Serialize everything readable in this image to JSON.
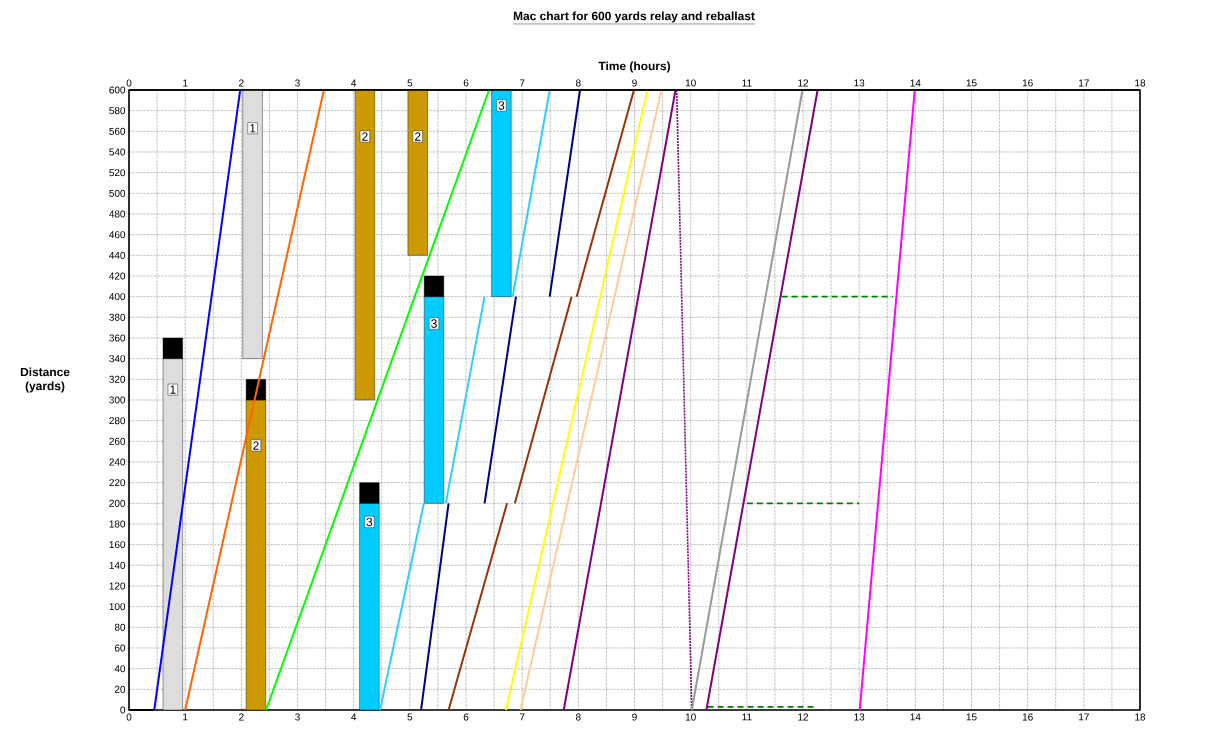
{
  "chart_data": {
    "type": "line",
    "title": "Mac chart for 600 yards relay and reballast",
    "xlabel": "Time (hours)",
    "ylabel": "Distance (yards)",
    "xlim": [
      0,
      18
    ],
    "ylim": [
      0,
      600
    ],
    "x2lim": [
      0,
      18
    ],
    "xticks": [
      0,
      {
        "value": 0.5,
        "label": null
      },
      1,
      {
        "value": 1.5,
        "label": null
      },
      2,
      {
        "value": 2.5,
        "label": null
      },
      3,
      {
        "value": 3.5,
        "label": null
      },
      4,
      {
        "value": 4.5,
        "label": null
      },
      5,
      {
        "value": 5.5,
        "label": null
      },
      6,
      {
        "value": 6.5,
        "label": null
      },
      7,
      {
        "value": 7.5,
        "label": null
      },
      8,
      {
        "value": 8.5,
        "label": null
      },
      9,
      {
        "value": 9.5,
        "label": null
      },
      10,
      {
        "value": 10.5,
        "label": null
      },
      11,
      {
        "value": 11.5,
        "label": null
      },
      12,
      {
        "value": 12.5,
        "label": null
      },
      13,
      {
        "value": 13.5,
        "label": null
      },
      14,
      {
        "value": 14.5,
        "label": null
      },
      15,
      {
        "value": 15.5,
        "label": null
      },
      16,
      {
        "value": 16.5,
        "label": null
      },
      17,
      {
        "value": 17.5,
        "label": null
      },
      18
    ],
    "x2ticks": [
      0,
      1,
      2,
      3,
      4,
      5,
      6,
      7,
      8,
      9,
      10,
      11,
      12,
      13,
      14,
      15,
      16,
      17,
      18
    ],
    "yticks": [
      0,
      20,
      40,
      60,
      80,
      100,
      120,
      140,
      160,
      180,
      200,
      220,
      240,
      260,
      280,
      300,
      320,
      340,
      360,
      380,
      400,
      420,
      440,
      460,
      480,
      500,
      520,
      540,
      560,
      580,
      600
    ],
    "grid": true,
    "line_style": "solid",
    "series": [
      {
        "type": "bar",
        "color": "#dddddd",
        "x": [
          0.78,
          2.2
        ],
        "base": [
          0,
          340
        ],
        "values": [
          340,
          260
        ]
      },
      {
        "type": "bar",
        "color": "#cc9900",
        "x": [
          2.26,
          4.2,
          5.14
        ],
        "base": [
          0,
          300,
          440
        ],
        "values": [
          300,
          300,
          160
        ]
      },
      {
        "type": "bar",
        "color": "#00ccff",
        "x": [
          4.28,
          5.43,
          6.63
        ],
        "base": [
          0,
          200,
          400
        ],
        "values": [
          200,
          200,
          200
        ]
      },
      {
        "type": "bar",
        "color": "#000000",
        "x": [
          0.78,
          2.26,
          4.28,
          5.43
        ],
        "base": [
          340,
          300,
          200,
          400
        ],
        "values": [
          20,
          20,
          20,
          20
        ]
      },
      {
        "color": "#000000",
        "x": [
          0,
          0.45,
          null,
          13.99,
          14.5
        ],
        "values": [
          0,
          0,
          null,
          600,
          600
        ]
      },
      {
        "color": "#0000ff",
        "x": [
          0.45,
          1.98
        ],
        "values": [
          0,
          600
        ]
      },
      {
        "color": "#ff6600",
        "x": [
          1.0,
          3.47
        ],
        "values": [
          0,
          600
        ]
      },
      {
        "color": "#00ff00",
        "x": [
          2.44,
          6.41
        ],
        "values": [
          0,
          600
        ]
      },
      {
        "color": "#33ccff",
        "x": [
          4.47,
          5.25,
          null,
          5.64,
          6.33,
          null,
          6.83,
          7.49
        ],
        "values": [
          0,
          200,
          null,
          200,
          400,
          null,
          400,
          600
        ]
      },
      {
        "color": "#000080",
        "x": [
          5.2,
          5.69,
          null,
          6.33,
          6.89,
          null,
          7.49,
          8.03
        ],
        "values": [
          0,
          200,
          null,
          200,
          400,
          null,
          400,
          600
        ]
      },
      {
        "color": "#993300",
        "x": [
          5.69,
          6.73,
          null,
          6.87,
          7.88,
          null,
          7.97,
          8.99
        ],
        "values": [
          0,
          200,
          null,
          200,
          400,
          null,
          400,
          600
        ]
      },
      {
        "color": "#ffff00",
        "x": [
          6.71,
          9.23
        ],
        "values": [
          0,
          600
        ]
      },
      {
        "color": "#ffcc99",
        "x": [
          6.97,
          9.48
        ],
        "values": [
          0,
          600
        ]
      },
      {
        "color": "#800080",
        "x": [
          7.74,
          9.73
        ],
        "values": [
          0,
          600
        ]
      },
      {
        "color": "#800080",
        "line_style": "dotted",
        "x": [
          9.75,
          10.02
        ],
        "values": [
          600,
          0
        ]
      },
      {
        "color": "#999999",
        "x": [
          10.02,
          11.99
        ],
        "values": [
          0,
          600
        ]
      },
      {
        "color": "#800080",
        "x": [
          10.28,
          12.26
        ],
        "values": [
          0,
          600
        ]
      },
      {
        "color": "#ff00ff",
        "x": [
          13.01,
          13.99
        ],
        "values": [
          0,
          600
        ]
      },
      {
        "color": "#008000",
        "line_style": "dashed",
        "x": [
          10.3,
          12.26,
          null,
          11.0,
          13.0,
          null,
          11.62,
          13.6
        ],
        "values": [
          3,
          3,
          null,
          200,
          200,
          null,
          400,
          400
        ]
      }
    ],
    "annotations": [
      {
        "text": "1",
        "x": 0.78,
        "y": 310
      },
      {
        "text": "1",
        "x": 2.2,
        "y": 563
      },
      {
        "text": "2",
        "x": 2.26,
        "y": 256
      },
      {
        "text": "2",
        "x": 4.2,
        "y": 555
      },
      {
        "text": "2",
        "x": 5.14,
        "y": 555
      },
      {
        "text": "3",
        "x": 4.28,
        "y": 182
      },
      {
        "text": "3",
        "x": 5.43,
        "y": 374
      },
      {
        "text": "3",
        "x": 6.63,
        "y": 585
      }
    ]
  }
}
